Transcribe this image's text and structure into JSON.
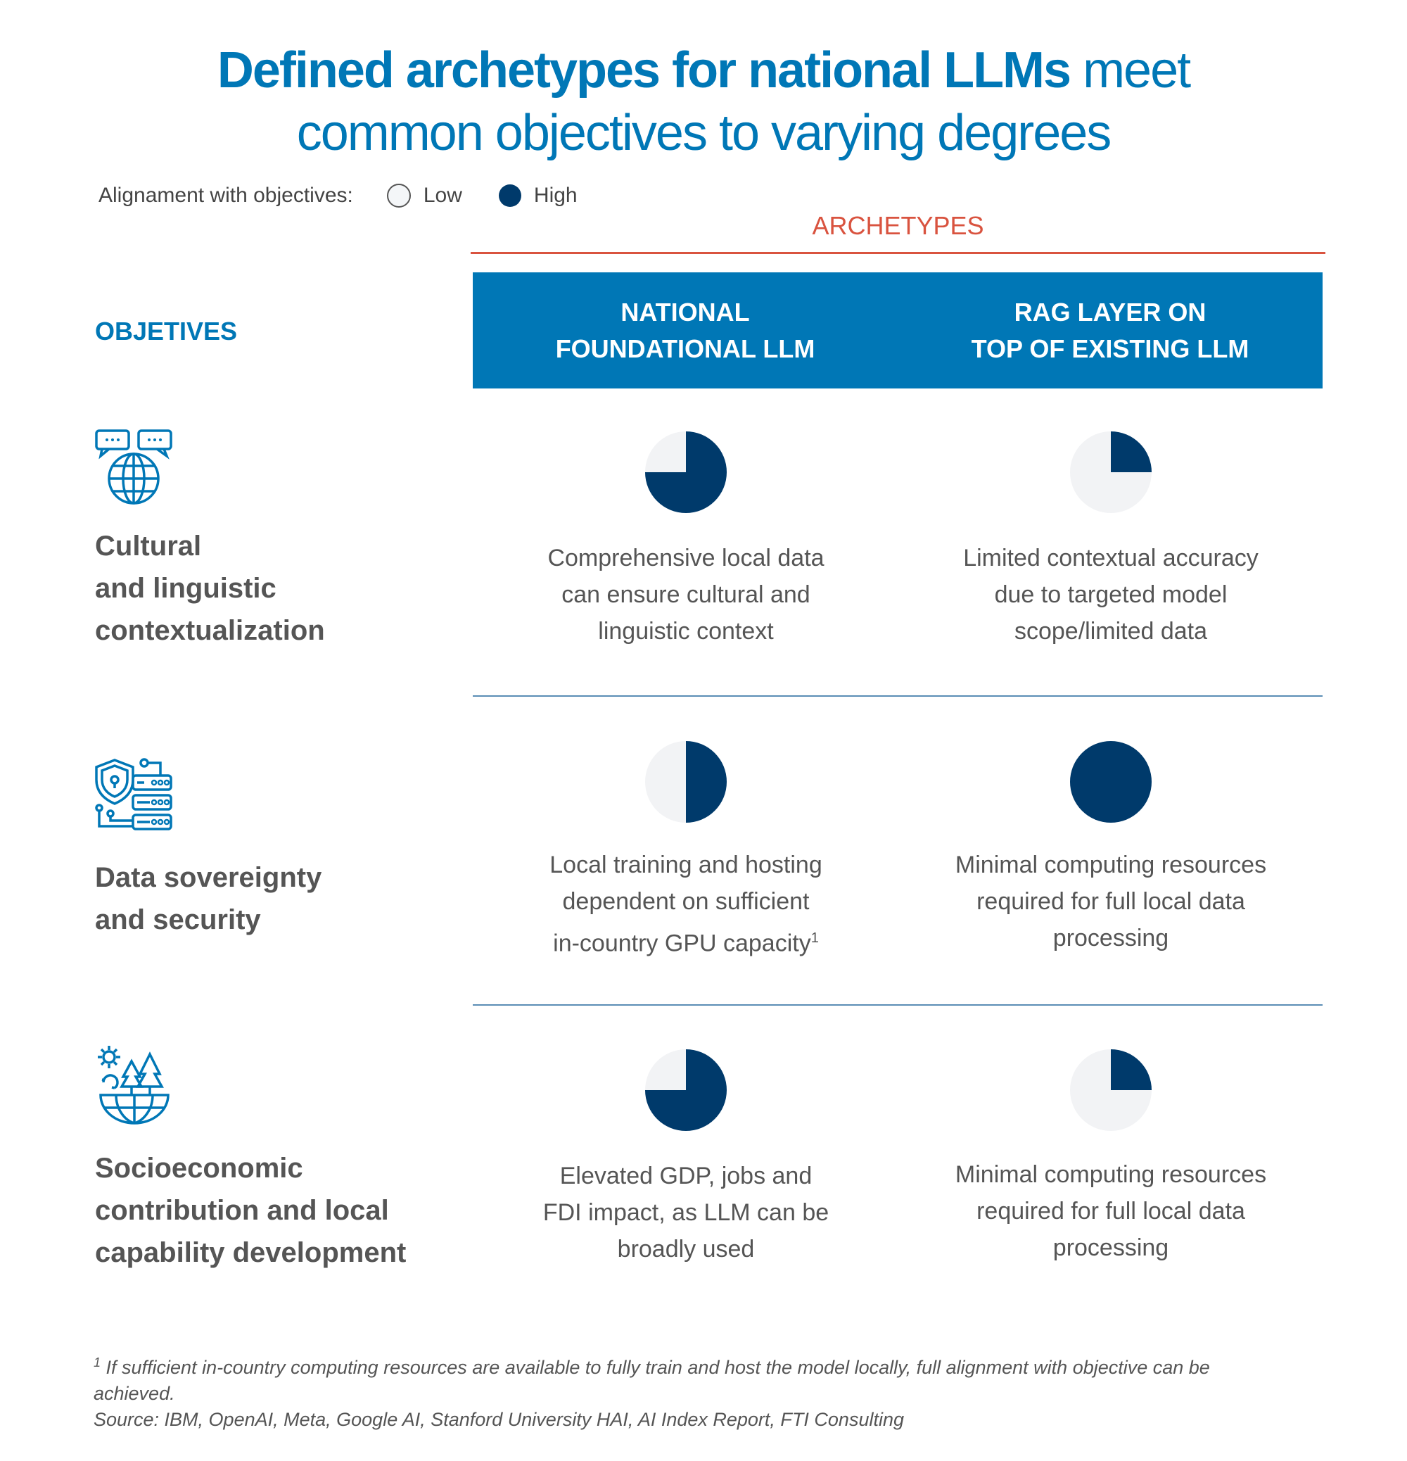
{
  "title": {
    "bold": "Defined archetypes for national LLMs",
    "light_1": " meet",
    "line2": "common objectives to varying degrees"
  },
  "legend": {
    "label": "Alignament with objectives:",
    "low": "Low",
    "high": "High"
  },
  "archetypes_label": "ARCHETYPES",
  "objectives_label": "OBJETIVES",
  "columns": [
    "NATIONAL\nFOUNDATIONAL LLM",
    "RAG LAYER ON\nTOP OF EXISTING LLM"
  ],
  "colors": {
    "brand_blue": "#0077b6",
    "accent_red": "#d9533f",
    "high": "#003a6b",
    "low": "#f2f3f5"
  },
  "rows": [
    {
      "objective": "Cultural\nand linguistic\ncontextualization",
      "icon": "globe-chat-icon",
      "cells": [
        {
          "alignment": 0.75,
          "text": "Comprehensive local data\ncan ensure cultural and\nlinguistic context"
        },
        {
          "alignment": 0.25,
          "text": "Limited contextual accuracy\ndue to targeted model\nscope/limited data"
        }
      ]
    },
    {
      "objective": "Data sovereignty\nand security",
      "icon": "shield-server-icon",
      "cells": [
        {
          "alignment": 0.5,
          "text": "Local training and hosting\ndependent on sufficient\nin-country GPU capacity",
          "sup": "1"
        },
        {
          "alignment": 1.0,
          "text": "Minimal computing resources\nrequired for full local data\nprocessing"
        }
      ]
    },
    {
      "objective": "Socioeconomic\ncontribution and local\ncapability development",
      "icon": "globe-trees-sun-icon",
      "cells": [
        {
          "alignment": 0.75,
          "text": "Elevated GDP, jobs and\nFDI impact, as LLM can be\nbroadly used"
        },
        {
          "alignment": 0.25,
          "text": "Minimal computing resources\nrequired for full local data\nprocessing"
        }
      ]
    }
  ],
  "footnote": {
    "sup": "1",
    "text": " If sufficient in-country computing resources are available to fully train and host the model locally, full alignment with objective can be achieved.",
    "source": "Source: IBM, OpenAI, Meta, Google AI, Stanford University HAI, AI Index Report, FTI Consulting"
  }
}
